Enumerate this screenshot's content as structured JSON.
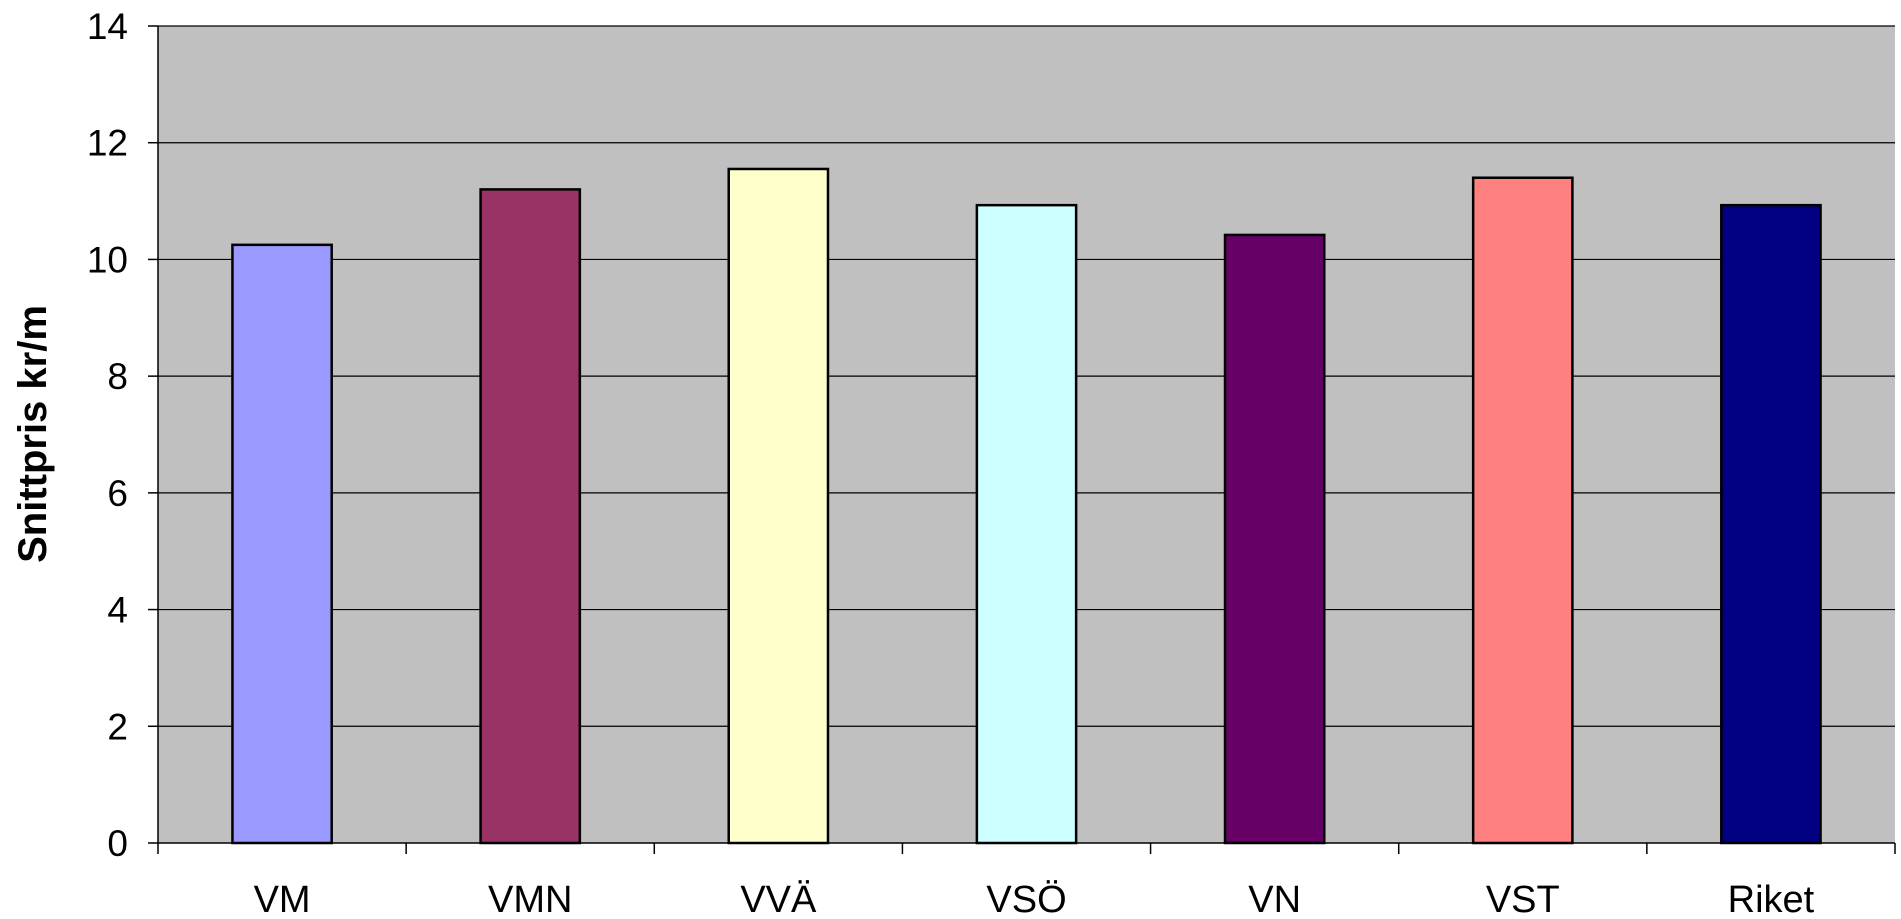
{
  "chart_data": {
    "type": "bar",
    "title": "",
    "xlabel": "",
    "ylabel": "Snittpris kr/m",
    "ylim": [
      0,
      14
    ],
    "yticks": [
      0,
      2,
      4,
      6,
      8,
      10,
      12,
      14
    ],
    "grid": true,
    "legend": "none",
    "categories": [
      "VM",
      "VMN",
      "VVÄ",
      "VSÖ",
      "VN",
      "VST",
      "Riket"
    ],
    "values": [
      10.25,
      11.2,
      11.55,
      10.93,
      10.42,
      11.4,
      10.93
    ],
    "colors": [
      "#9999FF",
      "#993366",
      "#FFFFCC",
      "#CCFFFF",
      "#660066",
      "#FF8080",
      "#000080"
    ],
    "plot_background": "#C0C0C0"
  }
}
